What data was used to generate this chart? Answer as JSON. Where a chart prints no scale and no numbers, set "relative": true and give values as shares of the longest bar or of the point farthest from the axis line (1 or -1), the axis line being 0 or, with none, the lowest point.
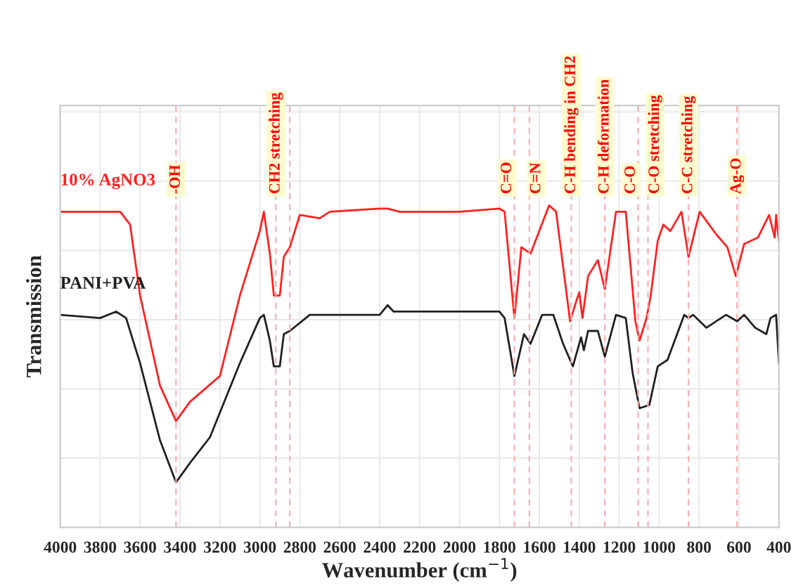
{
  "chart_data": {
    "type": "line",
    "relative": true,
    "xlabel": "Wavenumber (cm$^{−1}$)",
    "ylabel": "Transmission",
    "xlim": [
      4000,
      400
    ],
    "xticks": [
      4000,
      3800,
      3600,
      3400,
      3200,
      3000,
      2800,
      2600,
      2400,
      2200,
      2000,
      1800,
      1600,
      1400,
      1200,
      1000,
      800,
      600,
      400
    ],
    "grid": true,
    "line_style": "solid",
    "marker": "none",
    "series": [
      {
        "name": "10% AgNO3",
        "color": "#ff2020",
        "x": [
          4000,
          3700,
          3650,
          3600,
          3500,
          3420,
          3350,
          3200,
          3100,
          3000,
          2980,
          2950,
          2930,
          2900,
          2880,
          2850,
          2800,
          2700,
          2650,
          2400,
          2360,
          2300,
          2000,
          1800,
          1774,
          1725,
          1690,
          1644,
          1551,
          1516,
          1446,
          1411,
          1400,
          1384,
          1356,
          1307,
          1272,
          1216,
          1167,
          1119,
          1098,
          1063,
          1042,
          1007,
          979,
          944,
          888,
          853,
          797,
          714,
          658,
          616,
          574,
          505,
          449,
          421,
          414,
          400
        ],
        "values": [
          0.98,
          0.98,
          0.94,
          0.72,
          0.44,
          0.33,
          0.39,
          0.47,
          0.72,
          0.92,
          0.98,
          0.85,
          0.72,
          0.72,
          0.84,
          0.87,
          0.97,
          0.96,
          0.98,
          0.99,
          0.99,
          0.98,
          0.98,
          0.99,
          0.98,
          0.65,
          0.87,
          0.85,
          1.0,
          0.98,
          0.64,
          0.71,
          0.73,
          0.65,
          0.78,
          0.83,
          0.74,
          0.98,
          0.98,
          0.64,
          0.58,
          0.65,
          0.72,
          0.89,
          0.94,
          0.92,
          0.98,
          0.84,
          0.98,
          0.91,
          0.87,
          0.78,
          0.88,
          0.9,
          0.97,
          0.9,
          0.97,
          0.89
        ]
      },
      {
        "name": "PANI+PVA",
        "color": "#202020",
        "x": [
          4000,
          3800,
          3720,
          3670,
          3600,
          3500,
          3420,
          3350,
          3250,
          3100,
          3000,
          2980,
          2950,
          2930,
          2900,
          2880,
          2850,
          2750,
          2600,
          2400,
          2360,
          2330,
          2000,
          1800,
          1774,
          1725,
          1677,
          1644,
          1586,
          1530,
          1481,
          1432,
          1391,
          1377,
          1356,
          1307,
          1272,
          1216,
          1167,
          1133,
          1098,
          1049,
          1007,
          958,
          874,
          853,
          830,
          763,
          665,
          609,
          574,
          519,
          463,
          442,
          414,
          400
        ],
        "values": [
          0.66,
          0.65,
          0.67,
          0.65,
          0.51,
          0.27,
          0.14,
          0.2,
          0.28,
          0.51,
          0.65,
          0.66,
          0.58,
          0.5,
          0.5,
          0.6,
          0.61,
          0.66,
          0.66,
          0.66,
          0.69,
          0.67,
          0.67,
          0.67,
          0.65,
          0.47,
          0.6,
          0.57,
          0.66,
          0.66,
          0.57,
          0.5,
          0.59,
          0.55,
          0.61,
          0.61,
          0.53,
          0.66,
          0.65,
          0.48,
          0.37,
          0.38,
          0.5,
          0.52,
          0.66,
          0.65,
          0.66,
          0.62,
          0.66,
          0.64,
          0.66,
          0.62,
          0.6,
          0.65,
          0.66,
          0.51
        ]
      }
    ],
    "ref_lines": [
      {
        "axis": "x",
        "value": 3420,
        "label": "-OH",
        "color": "#f7b0b0",
        "line_style": "dashed"
      },
      {
        "axis": "x",
        "value": 2920,
        "label": "CH2 stretching",
        "color": "#f7b0b0",
        "line_style": "dashed"
      },
      {
        "axis": "x",
        "value": 2850,
        "label": null,
        "color": "#f7b0b0",
        "line_style": "dashed"
      },
      {
        "axis": "x",
        "value": 1725,
        "label": "C=O",
        "color": "#f7b0b0",
        "line_style": "dashed"
      },
      {
        "axis": "x",
        "value": 1650,
        "label": "C=N",
        "color": "#f7b0b0",
        "line_style": "dashed"
      },
      {
        "axis": "x",
        "value": 1440,
        "label": "C-H bending in CH2",
        "color": "#f7b0b0",
        "line_style": "dashed"
      },
      {
        "axis": "x",
        "value": 1272,
        "label": "C-H deformation",
        "color": "#f7b0b0",
        "line_style": "dashed"
      },
      {
        "axis": "x",
        "value": 1105,
        "label": "C-O",
        "color": "#f7b0b0",
        "line_style": "dashed"
      },
      {
        "axis": "x",
        "value": 1056,
        "label": "C-O stretching",
        "color": "#f7b0b0",
        "line_style": "dashed"
      },
      {
        "axis": "x",
        "value": 853,
        "label": "C-C stretching",
        "color": "#f7b0b0",
        "line_style": "dashed"
      },
      {
        "axis": "x",
        "value": 610,
        "label": "Ag-O",
        "color": "#f7b0b0",
        "line_style": "dashed"
      }
    ]
  }
}
